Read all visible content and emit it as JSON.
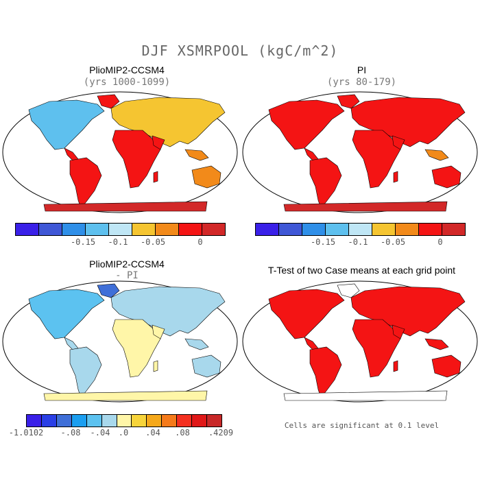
{
  "figure": {
    "title": "DJF XSMRPOOL (kgC/m^2)"
  },
  "panels": [
    {
      "title": "PlioMIP2-CCSM4",
      "subtitle": "(yrs 1000-1099)"
    },
    {
      "title": "PI",
      "subtitle": "(yrs 80-179)"
    },
    {
      "title": "PlioMIP2-CCSM4",
      "subtitle": "- PI"
    },
    {
      "title": "T-Test of two Case means at each grid point",
      "subtitle": ""
    }
  ],
  "colorbars": {
    "absolute": {
      "colors": [
        "#3a20e8",
        "#3f57d6",
        "#2f8fe8",
        "#5ec0ee",
        "#bfe6f5",
        "#f5c531",
        "#f28a1a",
        "#f41414",
        "#d22828"
      ],
      "labels": [
        "-0.15",
        "-0.1",
        "-0.05",
        "0"
      ]
    },
    "difference": {
      "colors": [
        "#3a20e8",
        "#2a3fe6",
        "#3f6fd8",
        "#1a9ef0",
        "#5cc2f0",
        "#a8d8ec",
        "#fff6a8",
        "#f7d43a",
        "#f5a81a",
        "#f57a1a",
        "#f43020",
        "#e01818",
        "#c82828"
      ],
      "labels": [
        "-1.0102",
        "-.08",
        "-.04",
        ".0",
        ".04",
        ".08",
        ".4209"
      ]
    }
  },
  "significance_note": "Cells are significant at 0.1 level",
  "map_colors": {
    "ocean": "#ffffff",
    "coast": "#000000",
    "ttest_fill": "#f41414"
  }
}
